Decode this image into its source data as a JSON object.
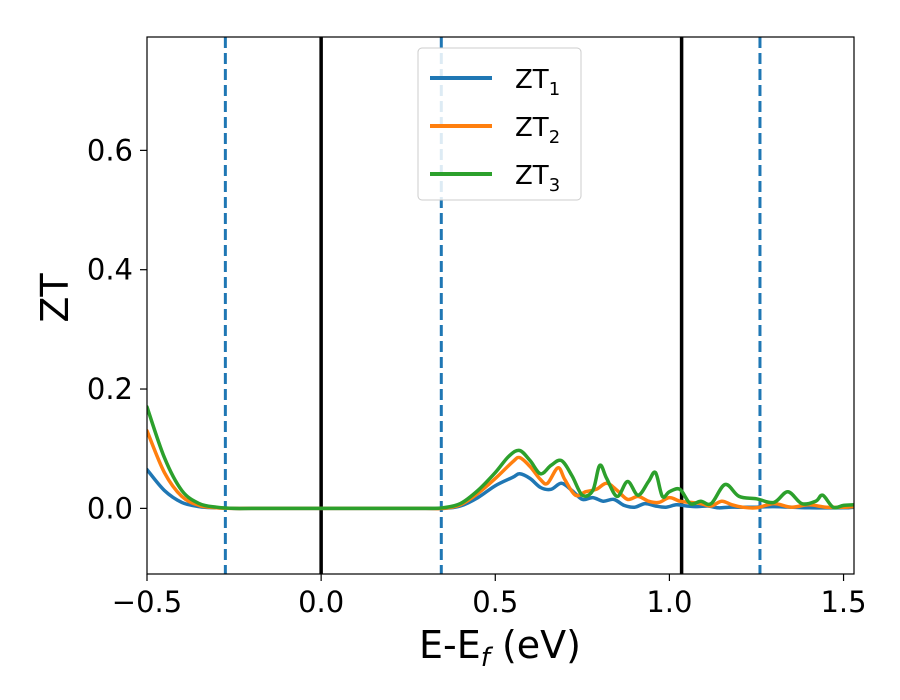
{
  "chart_data": {
    "type": "line",
    "xlabel": {
      "main": "E-E",
      "sub": "f",
      "tail": " (eV)"
    },
    "ylabel": "ZT",
    "xlim": [
      -0.5,
      1.53
    ],
    "ylim": [
      -0.11,
      0.79
    ],
    "xticks": [
      -0.5,
      0.0,
      0.5,
      1.0,
      1.5
    ],
    "xtick_labels": [
      "−0.5",
      "0.0",
      "0.5",
      "1.0",
      "1.5"
    ],
    "yticks": [
      0.0,
      0.2,
      0.4,
      0.6
    ],
    "ytick_labels": [
      "0.0",
      "0.2",
      "0.4",
      "0.6"
    ],
    "grid": false,
    "legend_position": "top-center",
    "vertical_lines": [
      {
        "x": -0.275,
        "style": "dashed",
        "color": "#1f77b4"
      },
      {
        "x": 0.0,
        "style": "solid",
        "color": "#000000"
      },
      {
        "x": 0.345,
        "style": "dashed",
        "color": "#1f77b4"
      },
      {
        "x": 1.035,
        "style": "solid",
        "color": "#000000"
      },
      {
        "x": 1.26,
        "style": "dashed",
        "color": "#1f77b4"
      }
    ],
    "series": [
      {
        "name": "ZT",
        "sub": "1",
        "color": "#1f77b4",
        "x": [
          -0.5,
          -0.45,
          -0.4,
          -0.35,
          -0.3,
          -0.25,
          -0.2,
          -0.1,
          0.0,
          0.1,
          0.2,
          0.3,
          0.35,
          0.4,
          0.45,
          0.5,
          0.55,
          0.57,
          0.6,
          0.63,
          0.66,
          0.69,
          0.72,
          0.75,
          0.78,
          0.81,
          0.84,
          0.87,
          0.9,
          0.93,
          0.96,
          0.99,
          1.02,
          1.05,
          1.08,
          1.11,
          1.14,
          1.17,
          1.2,
          1.25,
          1.3,
          1.4,
          1.5,
          1.53
        ],
        "y": [
          0.065,
          0.03,
          0.01,
          0.003,
          0.001,
          0.0,
          0.0,
          0.0,
          0.0,
          0.0,
          0.0,
          0.0,
          0.0,
          0.004,
          0.018,
          0.038,
          0.052,
          0.058,
          0.05,
          0.035,
          0.032,
          0.042,
          0.03,
          0.015,
          0.018,
          0.012,
          0.015,
          0.005,
          0.002,
          0.008,
          0.004,
          0.002,
          0.006,
          0.004,
          0.003,
          0.004,
          0.001,
          0.002,
          0.002,
          0.002,
          0.003,
          0.001,
          0.001,
          0.002
        ]
      },
      {
        "name": "ZT",
        "sub": "2",
        "color": "#ff7f0e",
        "x": [
          -0.5,
          -0.45,
          -0.4,
          -0.35,
          -0.3,
          -0.25,
          -0.2,
          -0.1,
          0.0,
          0.1,
          0.2,
          0.3,
          0.35,
          0.4,
          0.45,
          0.5,
          0.55,
          0.57,
          0.6,
          0.63,
          0.65,
          0.68,
          0.7,
          0.73,
          0.76,
          0.79,
          0.82,
          0.85,
          0.88,
          0.91,
          0.94,
          0.97,
          1.0,
          1.03,
          1.06,
          1.09,
          1.12,
          1.15,
          1.18,
          1.21,
          1.25,
          1.3,
          1.35,
          1.4,
          1.45,
          1.5,
          1.53
        ],
        "y": [
          0.13,
          0.06,
          0.02,
          0.005,
          0.001,
          0.0,
          0.0,
          0.0,
          0.0,
          0.0,
          0.0,
          0.0,
          0.0,
          0.006,
          0.025,
          0.05,
          0.078,
          0.085,
          0.07,
          0.048,
          0.042,
          0.068,
          0.048,
          0.022,
          0.028,
          0.032,
          0.042,
          0.03,
          0.015,
          0.02,
          0.012,
          0.01,
          0.018,
          0.012,
          0.01,
          0.008,
          0.004,
          0.012,
          0.006,
          0.002,
          0.001,
          0.008,
          0.002,
          0.006,
          0.002,
          0.002,
          0.003
        ]
      },
      {
        "name": "ZT",
        "sub": "3",
        "color": "#2ca02c",
        "x": [
          -0.5,
          -0.45,
          -0.4,
          -0.35,
          -0.3,
          -0.25,
          -0.2,
          -0.1,
          0.0,
          0.1,
          0.2,
          0.3,
          0.35,
          0.4,
          0.45,
          0.5,
          0.54,
          0.57,
          0.6,
          0.63,
          0.66,
          0.69,
          0.72,
          0.75,
          0.78,
          0.8,
          0.82,
          0.85,
          0.88,
          0.91,
          0.94,
          0.96,
          0.98,
          1.0,
          1.03,
          1.06,
          1.09,
          1.12,
          1.16,
          1.2,
          1.25,
          1.3,
          1.34,
          1.38,
          1.42,
          1.44,
          1.47,
          1.5,
          1.53
        ],
        "y": [
          0.17,
          0.085,
          0.03,
          0.008,
          0.002,
          0.0,
          0.0,
          0.0,
          0.0,
          0.0,
          0.0,
          0.0,
          0.001,
          0.008,
          0.03,
          0.06,
          0.088,
          0.097,
          0.08,
          0.058,
          0.072,
          0.08,
          0.055,
          0.022,
          0.03,
          0.072,
          0.05,
          0.02,
          0.045,
          0.022,
          0.045,
          0.06,
          0.02,
          0.028,
          0.032,
          0.008,
          0.012,
          0.008,
          0.04,
          0.02,
          0.016,
          0.01,
          0.028,
          0.008,
          0.012,
          0.022,
          0.002,
          0.005,
          0.006
        ]
      }
    ]
  }
}
